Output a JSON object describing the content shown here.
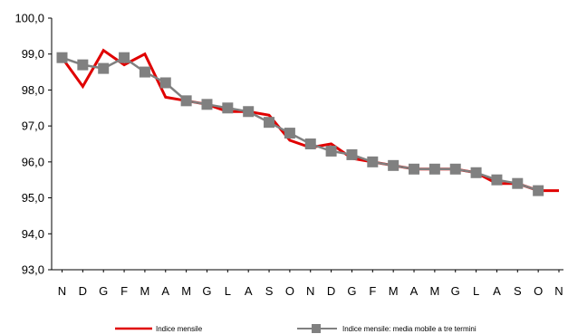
{
  "chart_data": {
    "type": "line",
    "title": "",
    "xlabel": "",
    "ylabel": "",
    "ylim": [
      93.0,
      100.0
    ],
    "yticks": [
      "93,0",
      "94,0",
      "95,0",
      "96,0",
      "97,0",
      "98,0",
      "99,0",
      "100,0"
    ],
    "categories": [
      "N",
      "D",
      "G",
      "F",
      "M",
      "A",
      "M",
      "G",
      "L",
      "A",
      "S",
      "O",
      "N",
      "D",
      "G",
      "F",
      "M",
      "A",
      "M",
      "G",
      "L",
      "A",
      "S",
      "O",
      "N"
    ],
    "grid": false,
    "legend_position": "bottom",
    "series": [
      {
        "name": "Indice mensile",
        "color": "#e00000",
        "marker": "none",
        "values": [
          98.9,
          98.1,
          99.1,
          98.7,
          99.0,
          97.8,
          97.7,
          97.6,
          97.4,
          97.4,
          97.3,
          96.6,
          96.4,
          96.5,
          96.1,
          96.0,
          95.9,
          95.8,
          95.8,
          95.8,
          95.7,
          95.4,
          95.4,
          95.2,
          95.2
        ]
      },
      {
        "name": "Indice mensile: media mobile a tre termini",
        "color": "#808080",
        "marker": "square",
        "values": [
          98.9,
          98.7,
          98.6,
          98.9,
          98.5,
          98.2,
          97.7,
          97.6,
          97.5,
          97.4,
          97.1,
          96.8,
          96.5,
          96.3,
          96.2,
          96.0,
          95.9,
          95.8,
          95.8,
          95.8,
          95.7,
          95.5,
          95.4,
          95.2,
          null
        ]
      }
    ]
  }
}
